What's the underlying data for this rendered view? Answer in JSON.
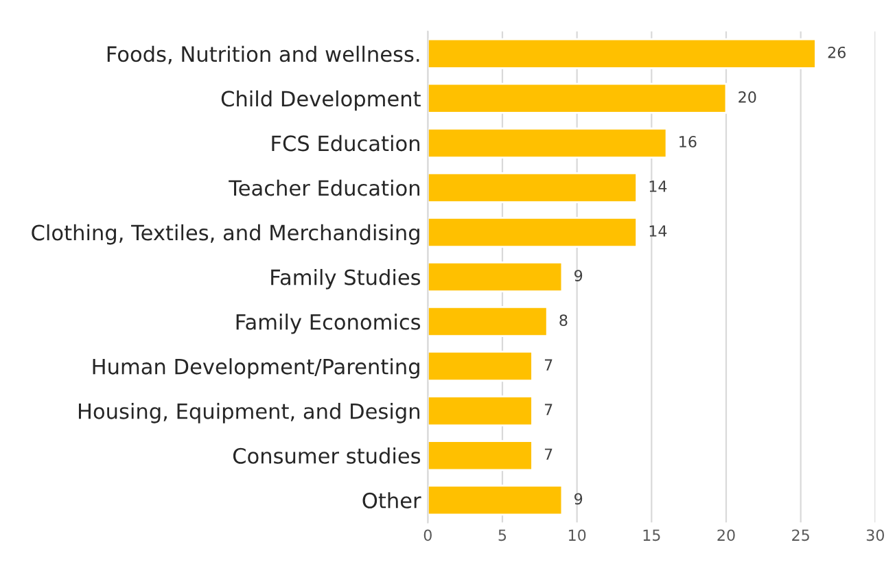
{
  "chart_data": {
    "type": "bar",
    "orientation": "horizontal",
    "categories": [
      "Foods, Nutrition and wellness.",
      "Child Development",
      "FCS Education",
      "Teacher Education",
      "Clothing, Textiles, and Merchandising",
      "Family Studies",
      "Family Economics",
      "Human Development/Parenting",
      "Housing, Equipment, and Design",
      "Consumer studies",
      "Other"
    ],
    "values": [
      26,
      20,
      16,
      14,
      14,
      9,
      8,
      7,
      7,
      7,
      9
    ],
    "color": "#ffc000",
    "xlim": [
      0,
      30
    ],
    "xticks": [
      0,
      5,
      10,
      15,
      20,
      25,
      30
    ],
    "grid": "x",
    "data_labels": true
  }
}
